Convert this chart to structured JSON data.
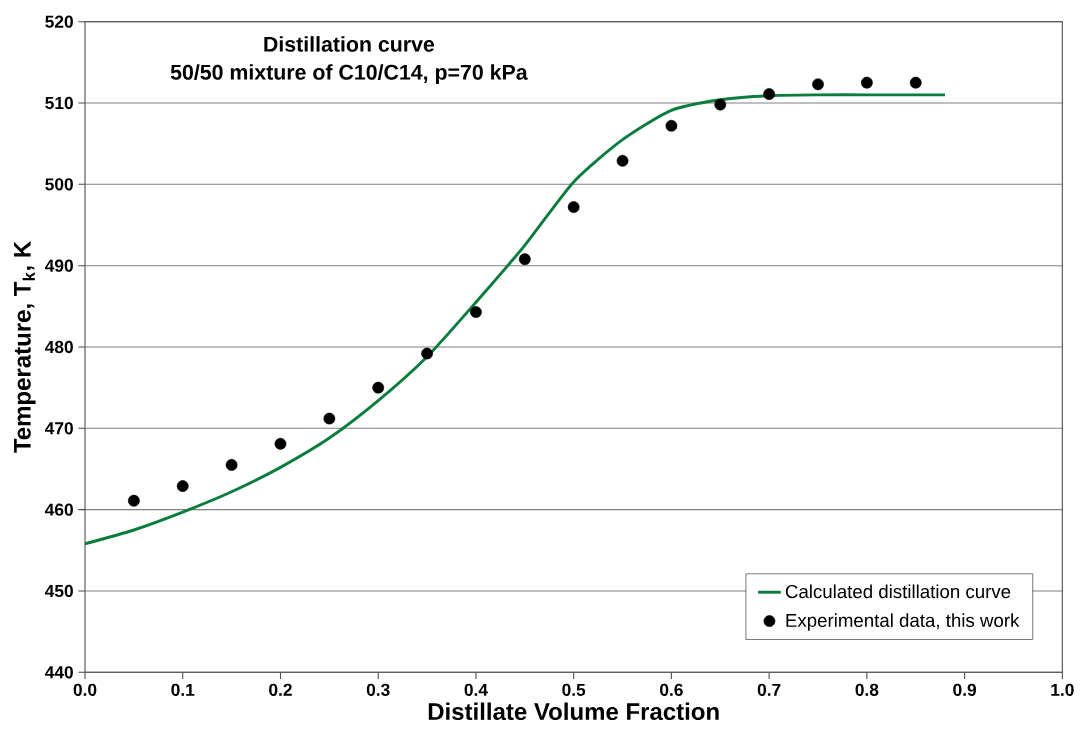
{
  "chart_data": {
    "type": "line",
    "title": "Distillation curve",
    "subtitle": "50/50 mixture of C10/C14, p=70 kPa",
    "xlabel": "Distillate Volume Fraction",
    "ylabel": "Temperature, T$_{k}$, K",
    "xlim": [
      0,
      1
    ],
    "ylim": [
      440,
      520
    ],
    "xticks": [
      {
        "value": 0,
        "label": "0.0"
      },
      {
        "value": 0.1,
        "label": "0.1"
      },
      {
        "value": 0.2,
        "label": "0.2"
      },
      {
        "value": 0.3,
        "label": "0.3"
      },
      {
        "value": 0.4,
        "label": "0.4"
      },
      {
        "value": 0.5,
        "label": "0.5"
      },
      {
        "value": 0.6,
        "label": "0.6"
      },
      {
        "value": 0.7,
        "label": "0.7"
      },
      {
        "value": 0.8,
        "label": "0.8"
      },
      {
        "value": 0.9,
        "label": "0.9"
      },
      {
        "value": 1,
        "label": "1.0"
      }
    ],
    "yticks": [
      440,
      450,
      460,
      470,
      480,
      490,
      500,
      510,
      520
    ],
    "grid": "y",
    "legend": "bottom right",
    "series": [
      {
        "name": "Calculated distillation curve",
        "color": "#0a7d3e",
        "marker": "none",
        "line_style": "solid",
        "x": [
          0,
          0.05,
          0.1,
          0.15,
          0.2,
          0.25,
          0.3,
          0.35,
          0.4,
          0.45,
          0.5,
          0.55,
          0.6,
          0.65,
          0.7,
          0.75,
          0.8,
          0.88
        ],
        "values": [
          455.8,
          457.5,
          459.7,
          462.2,
          465.2,
          468.8,
          473.4,
          478.8,
          485.5,
          492.5,
          500.3,
          505.5,
          509.1,
          510.4,
          510.9,
          511,
          511,
          511
        ]
      },
      {
        "name": "Experimental data, this work",
        "type": "scatter",
        "color": "#000000",
        "marker": "circle",
        "x": [
          0.05,
          0.1,
          0.15,
          0.2,
          0.25,
          0.3,
          0.35,
          0.4,
          0.45,
          0.5,
          0.55,
          0.6,
          0.65,
          0.7,
          0.75,
          0.8,
          0.85
        ],
        "values": [
          461.1,
          462.9,
          465.5,
          468.1,
          471.2,
          475.0,
          479.2,
          484.3,
          490.8,
          497.2,
          502.9,
          507.2,
          509.8,
          511.1,
          512.3,
          512.5,
          512.5
        ]
      }
    ]
  }
}
